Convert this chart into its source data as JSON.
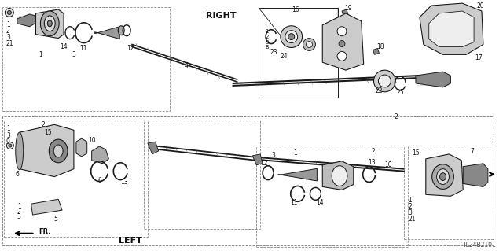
{
  "bg_color": "#ffffff",
  "diagram_code": "TL24B2101",
  "right_label": "RIGHT",
  "left_label": "LEFT",
  "fr_label": "FR.",
  "line_color": "#1a1a1a",
  "gray_dark": "#555555",
  "gray_mid": "#888888",
  "gray_light": "#cccccc",
  "gray_fill": "#aaaaaa",
  "figsize": [
    6.4,
    3.19
  ],
  "dpi": 100
}
